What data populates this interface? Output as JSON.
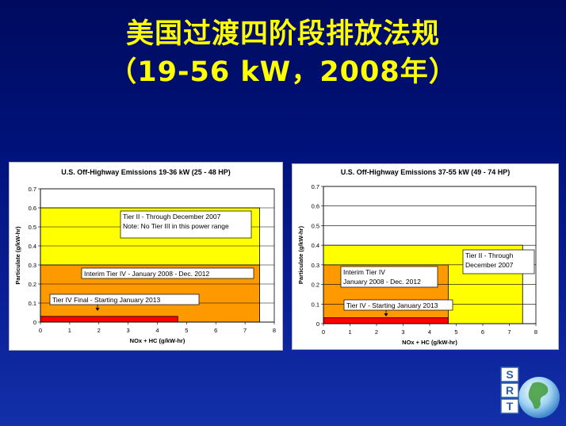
{
  "title_line1": "美国过渡四阶段排放法规",
  "title_line2": "（19-56 kW，2008年）",
  "logo_text": "SRT",
  "chart_data": [
    {
      "type": "area",
      "title": "U.S. Off-Highway Emissions 19-36 kW (25 - 48 HP)",
      "xlabel": "NOx + HC (g/kW-hr)",
      "ylabel": "Particulate (g/kW-hr)",
      "xlim": [
        0,
        8
      ],
      "ylim": [
        0,
        0.7
      ],
      "xticks": [
        "0",
        "1",
        "2",
        "3",
        "4",
        "5",
        "6",
        "7",
        "8"
      ],
      "yticks": [
        "0",
        "0.1",
        "0.2",
        "0.3",
        "0.4",
        "0.5",
        "0.6",
        "0.7"
      ],
      "grid": true,
      "regions": [
        {
          "x1": 7.5,
          "y1": 0.6,
          "color": "#ffff00"
        },
        {
          "x1": 7.5,
          "y1": 0.3,
          "color": "#ff9900"
        },
        {
          "x1": 4.7,
          "y1": 0.03,
          "color": "#ff0000"
        }
      ],
      "annotations": [
        {
          "lines": [
            "Tier II - Through December 2007",
            "Note: No Tier III in this power range"
          ]
        },
        {
          "lines": [
            "Interim Tier IV - January 2008 - Dec. 2012"
          ]
        },
        {
          "lines": [
            "Tier IV Final - Starting January 2013"
          ]
        }
      ]
    },
    {
      "type": "area",
      "title": "U.S. Off-Highway Emissions 37-55 kW (49 - 74 HP)",
      "xlabel": "NOx + HC (g/kW-hr)",
      "ylabel": "Particulate (g/kW-hr)",
      "xlim": [
        0,
        8
      ],
      "ylim": [
        0,
        0.7
      ],
      "xticks": [
        "0",
        "1",
        "2",
        "3",
        "4",
        "5",
        "6",
        "7",
        "8"
      ],
      "yticks": [
        "0",
        "0.1",
        "0.2",
        "0.3",
        "0.4",
        "0.5",
        "0.6",
        "0.7"
      ],
      "grid": true,
      "regions": [
        {
          "x1": 7.5,
          "y1": 0.4,
          "color": "#ffff00"
        },
        {
          "x1": 4.7,
          "y1": 0.3,
          "color": "#ff9900"
        },
        {
          "x1": 4.7,
          "y1": 0.03,
          "color": "#ff0000"
        }
      ],
      "annotations": [
        {
          "lines": [
            "Tier II - Through",
            "December 2007"
          ]
        },
        {
          "lines": [
            "Interim Tier IV",
            "January 2008 - Dec. 2012"
          ]
        },
        {
          "lines": [
            "Tier IV - Starting January 2013"
          ]
        }
      ]
    }
  ]
}
